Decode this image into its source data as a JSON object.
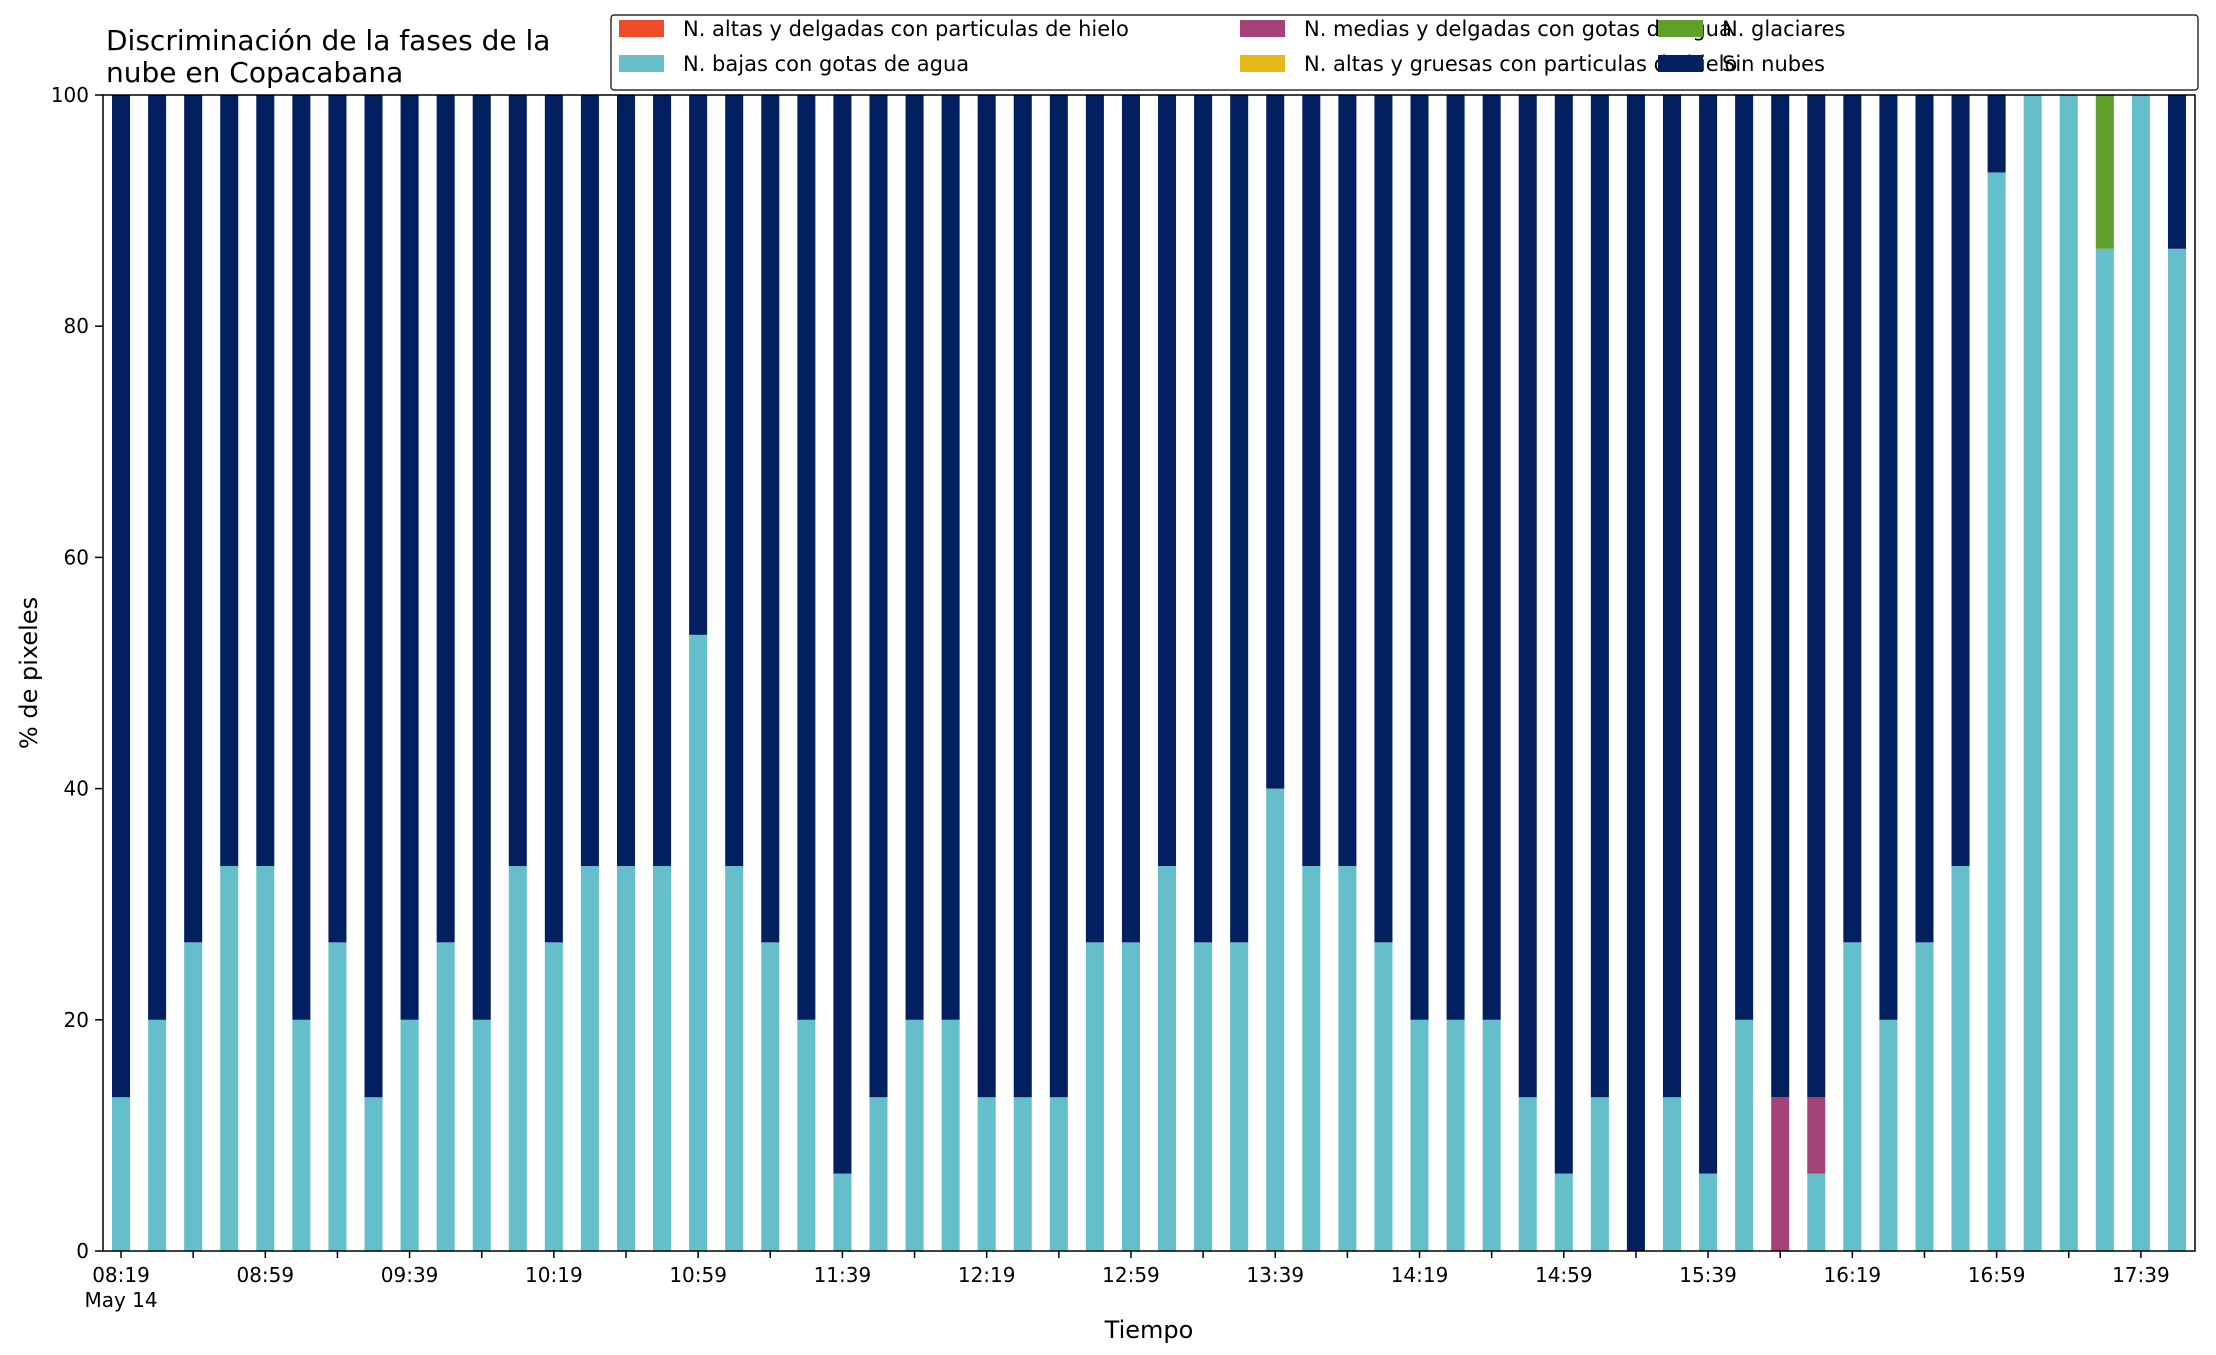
{
  "chart_data": {
    "type": "bar",
    "stacked": true,
    "title_lines": [
      "Discriminación de la fases de la",
      "nube en Copacabana"
    ],
    "xlabel": "Tiempo",
    "ylabel": "% de pixeles",
    "ylim": [
      0,
      100
    ],
    "yticks": [
      0,
      20,
      40,
      60,
      80,
      100
    ],
    "grid": false,
    "legend_position": "top-right",
    "x_tick_labels": [
      {
        "index": 0,
        "label": "08:19",
        "sub": "May 14"
      },
      {
        "index": 4,
        "label": "08:59"
      },
      {
        "index": 8,
        "label": "09:39"
      },
      {
        "index": 12,
        "label": "10:19"
      },
      {
        "index": 16,
        "label": "10:59"
      },
      {
        "index": 20,
        "label": "11:39"
      },
      {
        "index": 24,
        "label": "12:19"
      },
      {
        "index": 28,
        "label": "12:59"
      },
      {
        "index": 32,
        "label": "13:39"
      },
      {
        "index": 36,
        "label": "14:19"
      },
      {
        "index": 40,
        "label": "14:59"
      },
      {
        "index": 44,
        "label": "15:39"
      },
      {
        "index": 48,
        "label": "16:19"
      },
      {
        "index": 52,
        "label": "16:59"
      },
      {
        "index": 56,
        "label": "17:39"
      }
    ],
    "series": [
      {
        "name": "N. altas y delgadas con particulas de hielo",
        "color": "#ee4b2b",
        "values": [
          0,
          0,
          0,
          0,
          0,
          0,
          0,
          0,
          0,
          0,
          0,
          0,
          0,
          0,
          0,
          0,
          0,
          0,
          0,
          0,
          0,
          0,
          0,
          0,
          0,
          0,
          0,
          0,
          0,
          0,
          0,
          0,
          0,
          0,
          0,
          0,
          0,
          0,
          0,
          0,
          0,
          0,
          0,
          0,
          0,
          0,
          0,
          0,
          0,
          0,
          0,
          0,
          0,
          0,
          0,
          0,
          0,
          0
        ]
      },
      {
        "name": "N. altas y gruesas con particulas de hielo",
        "color": "#e6b817",
        "values": [
          0,
          0,
          0,
          0,
          0,
          0,
          0,
          0,
          0,
          0,
          0,
          0,
          0,
          0,
          0,
          0,
          0,
          0,
          0,
          0,
          0,
          0,
          0,
          0,
          0,
          0,
          0,
          0,
          0,
          0,
          0,
          0,
          0,
          0,
          0,
          0,
          0,
          0,
          0,
          0,
          0,
          0,
          0,
          0,
          0,
          0,
          0,
          0,
          0,
          0,
          0,
          0,
          0,
          0,
          0,
          0,
          0,
          0
        ]
      },
      {
        "name": "N. bajas con gotas de agua",
        "color": "#65bfca",
        "values": [
          13.3,
          20,
          26.7,
          33.3,
          33.3,
          20,
          26.7,
          13.3,
          20,
          26.7,
          20,
          33.3,
          26.7,
          33.3,
          33.3,
          33.3,
          53.3,
          33.3,
          26.7,
          20,
          6.7,
          13.3,
          20,
          20,
          13.3,
          13.3,
          13.3,
          26.7,
          26.7,
          33.3,
          26.7,
          26.7,
          40,
          33.3,
          33.3,
          26.7,
          20,
          20,
          20,
          13.3,
          6.7,
          13.3,
          0,
          13.3,
          6.7,
          20,
          0,
          6.7,
          26.7,
          20,
          26.7,
          33.3,
          93.3,
          100,
          100,
          86.7,
          100,
          86.7
        ]
      },
      {
        "name": "N. glaciares",
        "color": "#5f9f2c",
        "values": [
          0,
          0,
          0,
          0,
          0,
          0,
          0,
          0,
          0,
          0,
          0,
          0,
          0,
          0,
          0,
          0,
          0,
          0,
          0,
          0,
          0,
          0,
          0,
          0,
          0,
          0,
          0,
          0,
          0,
          0,
          0,
          0,
          0,
          0,
          0,
          0,
          0,
          0,
          0,
          0,
          0,
          0,
          0,
          0,
          0,
          0,
          0,
          0,
          0,
          0,
          0,
          0,
          0,
          0,
          0,
          13.3,
          0,
          0
        ]
      },
      {
        "name": "N. medias y delgadas con gotas de agua",
        "color": "#a24478",
        "values": [
          0,
          0,
          0,
          0,
          0,
          0,
          0,
          0,
          0,
          0,
          0,
          0,
          0,
          0,
          0,
          0,
          0,
          0,
          0,
          0,
          0,
          0,
          0,
          0,
          0,
          0,
          0,
          0,
          0,
          0,
          0,
          0,
          0,
          0,
          0,
          0,
          0,
          0,
          0,
          0,
          0,
          0,
          0,
          0,
          0,
          0,
          13.3,
          6.6,
          0,
          0,
          0,
          0,
          0,
          0,
          0,
          0,
          0,
          0
        ]
      },
      {
        "name": "Sin nubes",
        "color": "#021f60",
        "values": [
          86.7,
          80,
          73.3,
          66.7,
          66.7,
          80,
          73.3,
          86.7,
          80,
          73.3,
          80,
          66.7,
          73.3,
          66.7,
          66.7,
          66.7,
          46.7,
          66.7,
          73.3,
          80,
          93.3,
          86.7,
          80,
          80,
          86.7,
          86.7,
          86.7,
          73.3,
          73.3,
          66.7,
          73.3,
          73.3,
          60,
          66.7,
          66.7,
          73.3,
          80,
          80,
          80,
          86.7,
          93.3,
          86.7,
          100,
          86.7,
          93.3,
          80,
          86.7,
          86.7,
          73.3,
          80,
          73.3,
          66.7,
          6.7,
          0,
          0,
          0,
          0,
          13.3
        ]
      }
    ],
    "legend_order": [
      0,
      2,
      4,
      1,
      3,
      5
    ]
  }
}
